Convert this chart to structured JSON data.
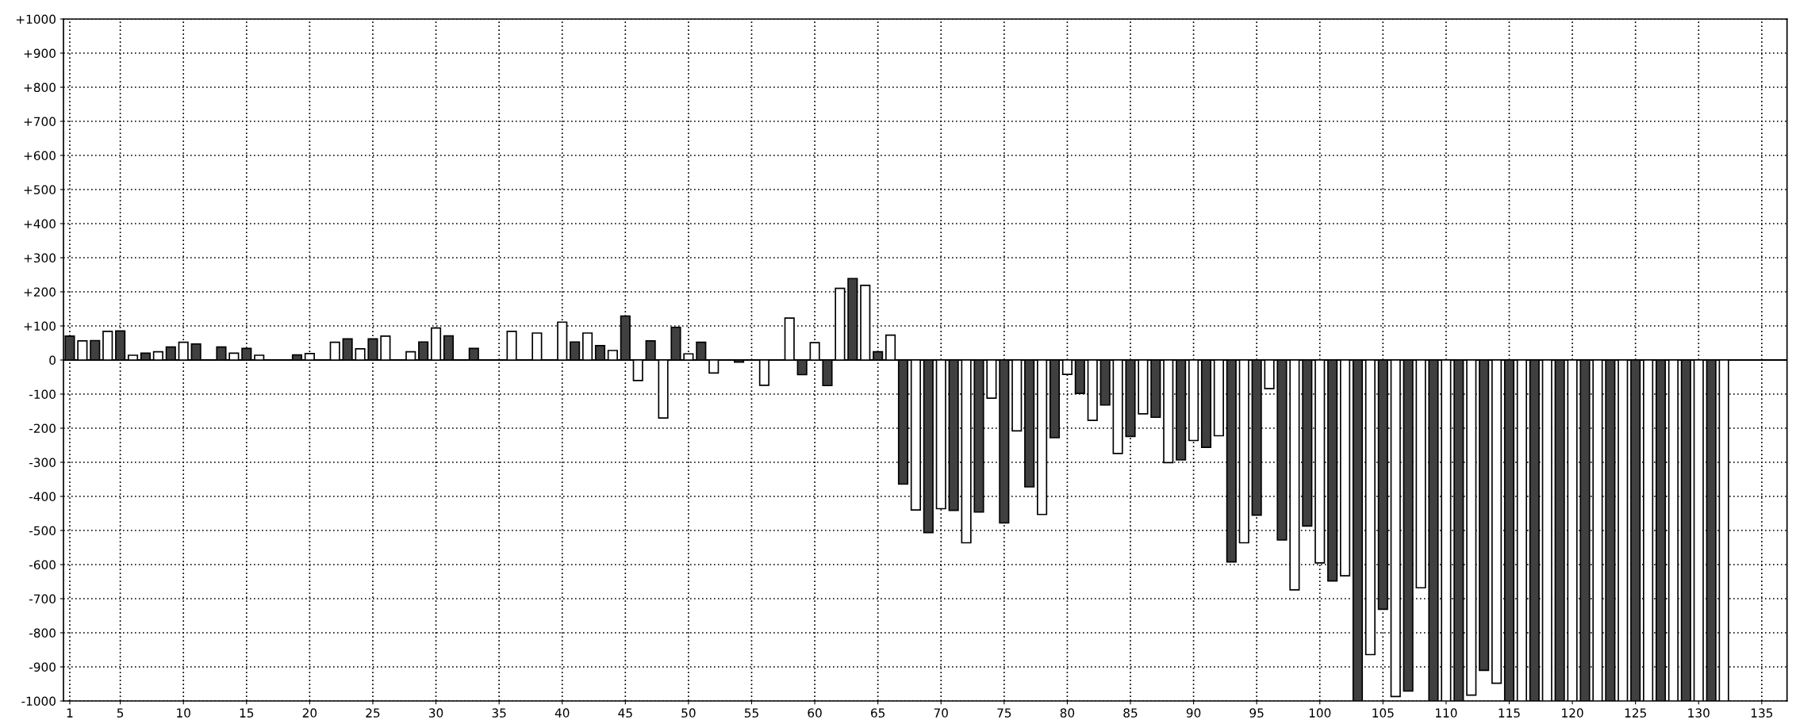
{
  "chart_data": {
    "type": "bar",
    "x": [
      1,
      2,
      3,
      4,
      5,
      6,
      7,
      8,
      9,
      10,
      11,
      12,
      13,
      14,
      15,
      16,
      17,
      18,
      19,
      20,
      21,
      22,
      23,
      24,
      25,
      26,
      27,
      28,
      29,
      30,
      31,
      32,
      33,
      34,
      35,
      36,
      37,
      38,
      39,
      40,
      41,
      42,
      43,
      44,
      45,
      46,
      47,
      48,
      49,
      50,
      51,
      52,
      53,
      54,
      55,
      56,
      57,
      58,
      59,
      60,
      61,
      62,
      63,
      64,
      65,
      66,
      67,
      68,
      69,
      70,
      71,
      72,
      73,
      74,
      75,
      76,
      77,
      78,
      79,
      80,
      81,
      82,
      83,
      84,
      85,
      86,
      87,
      88,
      89,
      90,
      91,
      92,
      93,
      94,
      95,
      96,
      97,
      98,
      99,
      100,
      101,
      102,
      103,
      104,
      105,
      106,
      107,
      108,
      109,
      110,
      111,
      112,
      113,
      114,
      115,
      116,
      117,
      118,
      119,
      120,
      121,
      122,
      123,
      124,
      125,
      126,
      127,
      128,
      129,
      130,
      131,
      132
    ],
    "values": [
      70,
      56,
      57,
      84,
      85,
      14,
      20,
      24,
      38,
      52,
      47,
      null,
      38,
      20,
      34,
      14,
      null,
      null,
      15,
      19,
      null,
      52,
      62,
      33,
      62,
      70,
      null,
      24,
      53,
      94,
      71,
      null,
      34,
      null,
      null,
      84,
      null,
      79,
      null,
      111,
      53,
      79,
      42,
      28,
      129,
      -60,
      56,
      -170,
      96,
      18,
      52,
      -38,
      null,
      -6,
      null,
      -74,
      null,
      123,
      -43,
      51,
      -75,
      210,
      239,
      219,
      24,
      73,
      -364,
      -440,
      -506,
      -436,
      -441,
      -536,
      -446,
      -112,
      -478,
      -208,
      -372,
      -453,
      -228,
      -42,
      -98,
      -177,
      -132,
      -274,
      -224,
      -158,
      -168,
      -301,
      -293,
      -236,
      -256,
      -222,
      -592,
      -536,
      -455,
      -84,
      -528,
      -674,
      -487,
      -595,
      -648,
      -633,
      -1000,
      -864,
      -731,
      -987,
      -971,
      -668,
      -1000,
      -1000,
      -1000,
      -983,
      -910,
      -948,
      -1000,
      -1000,
      -1000,
      -1000,
      -1000,
      -1000,
      -1000,
      -1000,
      -1000,
      -1000,
      -1000,
      -1000,
      -1000,
      -1000,
      -1000,
      -1000,
      -1000,
      -1000
    ],
    "colors": [
      "#404040",
      "#ffffff",
      "#404040",
      "#ffffff",
      "#404040",
      "#ffffff",
      "#404040",
      "#ffffff",
      "#404040",
      "#ffffff",
      "#404040",
      null,
      "#404040",
      "#ffffff",
      "#404040",
      "#ffffff",
      null,
      null,
      "#404040",
      "#ffffff",
      null,
      "#ffffff",
      "#404040",
      "#ffffff",
      "#404040",
      "#ffffff",
      null,
      "#ffffff",
      "#404040",
      "#ffffff",
      "#404040",
      null,
      "#404040",
      null,
      null,
      "#ffffff",
      null,
      "#ffffff",
      null,
      "#ffffff",
      "#404040",
      "#ffffff",
      "#404040",
      "#ffffff",
      "#404040",
      "#ffffff",
      "#404040",
      "#ffffff",
      "#404040",
      "#ffffff",
      "#404040",
      "#ffffff",
      null,
      "#404040",
      null,
      "#ffffff",
      null,
      "#ffffff",
      "#404040",
      "#ffffff",
      "#404040",
      "#ffffff",
      "#404040",
      "#ffffff",
      "#404040",
      "#ffffff",
      "#404040",
      "#ffffff",
      "#404040",
      "#ffffff",
      "#404040",
      "#ffffff",
      "#404040",
      "#ffffff",
      "#404040",
      "#ffffff",
      "#404040",
      "#ffffff",
      "#404040",
      "#ffffff",
      "#404040",
      "#ffffff",
      "#404040",
      "#ffffff",
      "#404040",
      "#ffffff",
      "#404040",
      "#ffffff",
      "#404040",
      "#ffffff",
      "#404040",
      "#ffffff",
      "#404040",
      "#ffffff",
      "#404040",
      "#ffffff",
      "#404040",
      "#ffffff",
      "#404040",
      "#ffffff",
      "#404040",
      "#ffffff",
      "#404040",
      "#ffffff",
      "#404040",
      "#ffffff",
      "#404040",
      "#ffffff",
      "#404040",
      "#ffffff",
      "#404040",
      "#ffffff",
      "#404040",
      "#ffffff",
      "#404040",
      "#ffffff",
      "#404040",
      "#ffffff",
      "#404040",
      "#ffffff",
      "#404040",
      "#ffffff",
      "#404040",
      "#ffffff",
      "#404040",
      "#ffffff",
      "#404040",
      "#ffffff",
      "#404040",
      "#ffffff",
      "#404040",
      "#ffffff"
    ],
    "xlim": [
      0.5,
      137
    ],
    "xticks": [
      1,
      5,
      10,
      15,
      20,
      25,
      30,
      35,
      40,
      45,
      50,
      55,
      60,
      65,
      70,
      75,
      80,
      85,
      90,
      95,
      100,
      105,
      110,
      115,
      120,
      125,
      130,
      135
    ],
    "ylim": [
      -1000,
      1000
    ],
    "yticks": [
      {
        "value": 1000,
        "label": "+1000"
      },
      {
        "value": 900,
        "label": "+900"
      },
      {
        "value": 800,
        "label": "+800"
      },
      {
        "value": 700,
        "label": "+700"
      },
      {
        "value": 600,
        "label": "+600"
      },
      {
        "value": 500,
        "label": "+500"
      },
      {
        "value": 400,
        "label": "+400"
      },
      {
        "value": 300,
        "label": "+300"
      },
      {
        "value": 200,
        "label": "+200"
      },
      {
        "value": 100,
        "label": "+100"
      },
      0,
      {
        "value": -100,
        "label": "-100"
      },
      {
        "value": -200,
        "label": "-200"
      },
      {
        "value": -300,
        "label": "-300"
      },
      {
        "value": -400,
        "label": "-400"
      },
      {
        "value": -500,
        "label": "-500"
      },
      {
        "value": -600,
        "label": "-600"
      },
      {
        "value": -700,
        "label": "-700"
      },
      {
        "value": -800,
        "label": "-800"
      },
      {
        "value": -900,
        "label": "-900"
      },
      {
        "value": -1000,
        "label": "-1000"
      }
    ],
    "grid": true
  }
}
